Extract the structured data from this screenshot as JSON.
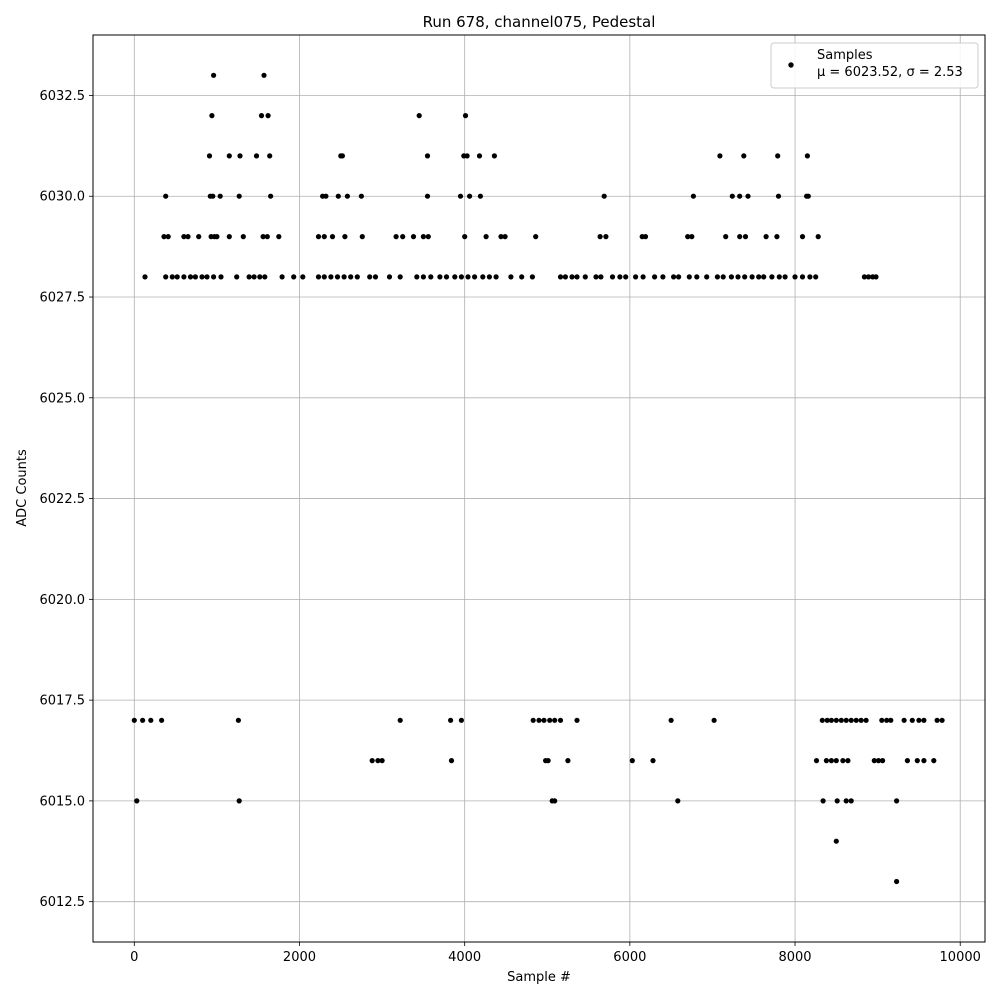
{
  "chart_data": {
    "type": "scatter",
    "title": "Run 678, channel075, Pedestal",
    "xlabel": "Sample #",
    "ylabel": "ADC Counts",
    "xlim": [
      -500,
      10300
    ],
    "ylim": [
      6011.5,
      6034
    ],
    "grid": true,
    "legend_position": "top-right",
    "x_ticks": [
      0,
      2000,
      4000,
      6000,
      8000,
      10000
    ],
    "x_tick_labels": [
      "0",
      "2000",
      "4000",
      "6000",
      "8000",
      "10000"
    ],
    "y_ticks": [
      6012.5,
      6015.0,
      6017.5,
      6020.0,
      6022.5,
      6025.0,
      6027.5,
      6030.0,
      6032.5
    ],
    "y_tick_labels": [
      "6012.5",
      "6015.0",
      "6017.5",
      "6020.0",
      "6022.5",
      "6025.0",
      "6027.5",
      "6030.0",
      "6032.5"
    ],
    "series": [
      {
        "name": "Samples",
        "color": "#000000",
        "marker": "circle",
        "stats_label": "μ = 6023.52, σ = 2.53",
        "mean": 6023.52,
        "sigma": 2.53,
        "points": [
          [
            960,
            6033
          ],
          [
            1570,
            6033
          ],
          [
            940,
            6032
          ],
          [
            1540,
            6032
          ],
          [
            1620,
            6032
          ],
          [
            3450,
            6032
          ],
          [
            4010,
            6032
          ],
          [
            910,
            6031
          ],
          [
            1150,
            6031
          ],
          [
            1280,
            6031
          ],
          [
            1480,
            6031
          ],
          [
            1640,
            6031
          ],
          [
            2500,
            6031
          ],
          [
            2520,
            6031
          ],
          [
            3550,
            6031
          ],
          [
            3990,
            6031
          ],
          [
            4030,
            6031
          ],
          [
            4180,
            6031
          ],
          [
            4360,
            6031
          ],
          [
            7090,
            6031
          ],
          [
            7380,
            6031
          ],
          [
            7790,
            6031
          ],
          [
            8150,
            6031
          ],
          [
            380,
            6030
          ],
          [
            920,
            6030
          ],
          [
            950,
            6030
          ],
          [
            1040,
            6030
          ],
          [
            1270,
            6030
          ],
          [
            1650,
            6030
          ],
          [
            2280,
            6030
          ],
          [
            2320,
            6030
          ],
          [
            2470,
            6030
          ],
          [
            2580,
            6030
          ],
          [
            2750,
            6030
          ],
          [
            3550,
            6030
          ],
          [
            3950,
            6030
          ],
          [
            4060,
            6030
          ],
          [
            4190,
            6030
          ],
          [
            5690,
            6030
          ],
          [
            6770,
            6030
          ],
          [
            7240,
            6030
          ],
          [
            7330,
            6030
          ],
          [
            7430,
            6030
          ],
          [
            7800,
            6030
          ],
          [
            8140,
            6030
          ],
          [
            8160,
            6030
          ],
          [
            360,
            6029
          ],
          [
            410,
            6029
          ],
          [
            600,
            6029
          ],
          [
            650,
            6029
          ],
          [
            780,
            6029
          ],
          [
            930,
            6029
          ],
          [
            970,
            6029
          ],
          [
            1000,
            6029
          ],
          [
            1150,
            6029
          ],
          [
            1320,
            6029
          ],
          [
            1560,
            6029
          ],
          [
            1610,
            6029
          ],
          [
            1750,
            6029
          ],
          [
            2230,
            6029
          ],
          [
            2300,
            6029
          ],
          [
            2400,
            6029
          ],
          [
            2550,
            6029
          ],
          [
            2760,
            6029
          ],
          [
            3170,
            6029
          ],
          [
            3250,
            6029
          ],
          [
            3380,
            6029
          ],
          [
            3500,
            6029
          ],
          [
            3560,
            6029
          ],
          [
            4000,
            6029
          ],
          [
            4260,
            6029
          ],
          [
            4440,
            6029
          ],
          [
            4490,
            6029
          ],
          [
            4860,
            6029
          ],
          [
            5640,
            6029
          ],
          [
            5710,
            6029
          ],
          [
            6150,
            6029
          ],
          [
            6190,
            6029
          ],
          [
            6700,
            6029
          ],
          [
            6750,
            6029
          ],
          [
            7160,
            6029
          ],
          [
            7330,
            6029
          ],
          [
            7400,
            6029
          ],
          [
            7650,
            6029
          ],
          [
            7780,
            6029
          ],
          [
            8090,
            6029
          ],
          [
            8280,
            6029
          ],
          [
            130,
            6028
          ],
          [
            380,
            6028
          ],
          [
            460,
            6028
          ],
          [
            520,
            6028
          ],
          [
            600,
            6028
          ],
          [
            680,
            6028
          ],
          [
            740,
            6028
          ],
          [
            820,
            6028
          ],
          [
            880,
            6028
          ],
          [
            960,
            6028
          ],
          [
            1050,
            6028
          ],
          [
            1240,
            6028
          ],
          [
            1390,
            6028
          ],
          [
            1450,
            6028
          ],
          [
            1520,
            6028
          ],
          [
            1580,
            6028
          ],
          [
            1790,
            6028
          ],
          [
            1930,
            6028
          ],
          [
            2040,
            6028
          ],
          [
            2230,
            6028
          ],
          [
            2300,
            6028
          ],
          [
            2380,
            6028
          ],
          [
            2460,
            6028
          ],
          [
            2540,
            6028
          ],
          [
            2620,
            6028
          ],
          [
            2700,
            6028
          ],
          [
            2850,
            6028
          ],
          [
            2920,
            6028
          ],
          [
            3090,
            6028
          ],
          [
            3220,
            6028
          ],
          [
            3420,
            6028
          ],
          [
            3500,
            6028
          ],
          [
            3590,
            6028
          ],
          [
            3700,
            6028
          ],
          [
            3780,
            6028
          ],
          [
            3880,
            6028
          ],
          [
            3960,
            6028
          ],
          [
            4040,
            6028
          ],
          [
            4120,
            6028
          ],
          [
            4220,
            6028
          ],
          [
            4300,
            6028
          ],
          [
            4380,
            6028
          ],
          [
            4560,
            6028
          ],
          [
            4690,
            6028
          ],
          [
            4820,
            6028
          ],
          [
            5160,
            6028
          ],
          [
            5220,
            6028
          ],
          [
            5300,
            6028
          ],
          [
            5360,
            6028
          ],
          [
            5460,
            6028
          ],
          [
            5590,
            6028
          ],
          [
            5650,
            6028
          ],
          [
            5790,
            6028
          ],
          [
            5880,
            6028
          ],
          [
            5950,
            6028
          ],
          [
            6070,
            6028
          ],
          [
            6160,
            6028
          ],
          [
            6300,
            6028
          ],
          [
            6400,
            6028
          ],
          [
            6530,
            6028
          ],
          [
            6590,
            6028
          ],
          [
            6720,
            6028
          ],
          [
            6810,
            6028
          ],
          [
            6930,
            6028
          ],
          [
            7060,
            6028
          ],
          [
            7130,
            6028
          ],
          [
            7230,
            6028
          ],
          [
            7310,
            6028
          ],
          [
            7390,
            6028
          ],
          [
            7480,
            6028
          ],
          [
            7560,
            6028
          ],
          [
            7620,
            6028
          ],
          [
            7720,
            6028
          ],
          [
            7810,
            6028
          ],
          [
            7880,
            6028
          ],
          [
            8000,
            6028
          ],
          [
            8090,
            6028
          ],
          [
            8180,
            6028
          ],
          [
            8250,
            6028
          ],
          [
            8840,
            6028
          ],
          [
            8890,
            6028
          ],
          [
            8940,
            6028
          ],
          [
            8980,
            6028
          ],
          [
            30,
            6015
          ],
          [
            1270,
            6015
          ],
          [
            5060,
            6015
          ],
          [
            5090,
            6015
          ],
          [
            6580,
            6015
          ],
          [
            8340,
            6015
          ],
          [
            8510,
            6015
          ],
          [
            8620,
            6015
          ],
          [
            8680,
            6015
          ],
          [
            9230,
            6015
          ],
          [
            2880,
            6016
          ],
          [
            2950,
            6016
          ],
          [
            3000,
            6016
          ],
          [
            3840,
            6016
          ],
          [
            4980,
            6016
          ],
          [
            5010,
            6016
          ],
          [
            5250,
            6016
          ],
          [
            6030,
            6016
          ],
          [
            6280,
            6016
          ],
          [
            8260,
            6016
          ],
          [
            8380,
            6016
          ],
          [
            8440,
            6016
          ],
          [
            8500,
            6016
          ],
          [
            8580,
            6016
          ],
          [
            8640,
            6016
          ],
          [
            8960,
            6016
          ],
          [
            9010,
            6016
          ],
          [
            9060,
            6016
          ],
          [
            9360,
            6016
          ],
          [
            9480,
            6016
          ],
          [
            9560,
            6016
          ],
          [
            9680,
            6016
          ],
          [
            0,
            6017
          ],
          [
            100,
            6017
          ],
          [
            200,
            6017
          ],
          [
            330,
            6017
          ],
          [
            1260,
            6017
          ],
          [
            3220,
            6017
          ],
          [
            3830,
            6017
          ],
          [
            3960,
            6017
          ],
          [
            4830,
            6017
          ],
          [
            4900,
            6017
          ],
          [
            4960,
            6017
          ],
          [
            5030,
            6017
          ],
          [
            5090,
            6017
          ],
          [
            5160,
            6017
          ],
          [
            5360,
            6017
          ],
          [
            6500,
            6017
          ],
          [
            7020,
            6017
          ],
          [
            8330,
            6017
          ],
          [
            8390,
            6017
          ],
          [
            8440,
            6017
          ],
          [
            8500,
            6017
          ],
          [
            8560,
            6017
          ],
          [
            8620,
            6017
          ],
          [
            8680,
            6017
          ],
          [
            8740,
            6017
          ],
          [
            8800,
            6017
          ],
          [
            8860,
            6017
          ],
          [
            9050,
            6017
          ],
          [
            9110,
            6017
          ],
          [
            9160,
            6017
          ],
          [
            9320,
            6017
          ],
          [
            9420,
            6017
          ],
          [
            9500,
            6017
          ],
          [
            9560,
            6017
          ],
          [
            9720,
            6017
          ],
          [
            9780,
            6017
          ],
          [
            8500,
            6014
          ],
          [
            9230,
            6013
          ]
        ]
      }
    ]
  }
}
